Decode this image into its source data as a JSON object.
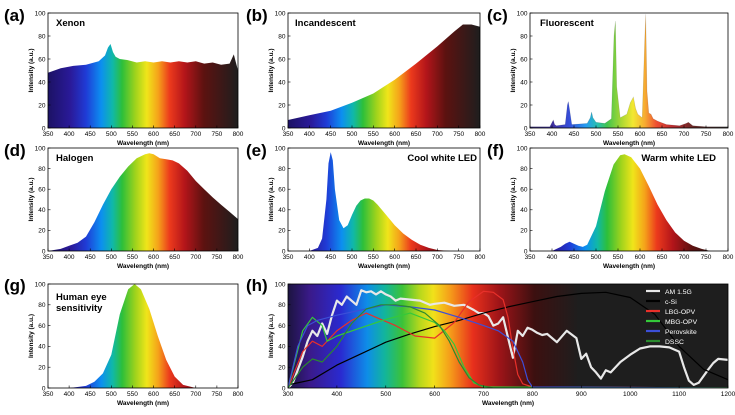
{
  "chart_data": [
    {
      "id": "a",
      "panel_label": "(a)",
      "title": "Xenon",
      "type": "area",
      "xlabel": "Wavelength (nm)",
      "ylabel": "Intensity (a.u.)",
      "xlim": [
        350,
        800
      ],
      "ylim": [
        0,
        100
      ],
      "xticks": [
        350,
        400,
        450,
        500,
        550,
        600,
        650,
        700,
        750,
        800
      ],
      "yticks": [
        0,
        20,
        40,
        60,
        80,
        100
      ],
      "x": [
        350,
        380,
        410,
        440,
        470,
        485,
        492,
        498,
        504,
        510,
        520,
        540,
        560,
        580,
        600,
        620,
        640,
        660,
        680,
        700,
        720,
        740,
        760,
        780,
        790,
        795,
        800
      ],
      "y": [
        48,
        52,
        54,
        55,
        58,
        63,
        70,
        73,
        66,
        62,
        60,
        59,
        57,
        58,
        57,
        58,
        57,
        58,
        57,
        58,
        56,
        57,
        55,
        56,
        64,
        57,
        50
      ]
    },
    {
      "id": "b",
      "panel_label": "(b)",
      "title": "Incandescent",
      "type": "area",
      "xlabel": "Wavelength (nm)",
      "ylabel": "Intensity (a.u.)",
      "xlim": [
        350,
        800
      ],
      "ylim": [
        0,
        100
      ],
      "xticks": [
        350,
        400,
        450,
        500,
        550,
        600,
        650,
        700,
        750,
        800
      ],
      "yticks": [
        0,
        20,
        40,
        60,
        80,
        100
      ],
      "x": [
        350,
        400,
        450,
        500,
        550,
        600,
        650,
        700,
        740,
        760,
        780,
        800
      ],
      "y": [
        7,
        11,
        15,
        22,
        30,
        42,
        56,
        71,
        84,
        90,
        90,
        88
      ]
    },
    {
      "id": "c",
      "panel_label": "(c)",
      "title": "Fluorescent",
      "type": "line",
      "xlabel": "Wavelength (nm)",
      "ylabel": "Intensity (a.u.)",
      "xlim": [
        350,
        800
      ],
      "ylim": [
        0,
        100
      ],
      "xticks": [
        350,
        400,
        450,
        500,
        550,
        600,
        650,
        700,
        750,
        800
      ],
      "yticks": [
        0,
        20,
        40,
        60,
        80,
        100
      ],
      "x": [
        350,
        395,
        403,
        406,
        410,
        430,
        435,
        437,
        440,
        445,
        480,
        487,
        490,
        493,
        500,
        520,
        535,
        541,
        544,
        547,
        555,
        570,
        578,
        585,
        590,
        595,
        605,
        611,
        613,
        616,
        620,
        625,
        630,
        640,
        660,
        690,
        705,
        710,
        720,
        750,
        800
      ],
      "y": [
        1,
        1,
        7,
        3,
        2,
        3,
        20,
        23,
        16,
        3,
        4,
        9,
        14,
        9,
        5,
        4,
        8,
        80,
        93,
        36,
        9,
        12,
        22,
        27,
        17,
        12,
        9,
        78,
        99,
        32,
        13,
        12,
        8,
        6,
        3,
        2,
        4,
        5,
        2,
        1,
        1
      ]
    },
    {
      "id": "d",
      "panel_label": "(d)",
      "title": "Halogen",
      "type": "area",
      "xlabel": "Wavelength (nm)",
      "ylabel": "Intensity (a.u.)",
      "xlim": [
        350,
        800
      ],
      "ylim": [
        0,
        100
      ],
      "xticks": [
        350,
        400,
        450,
        500,
        550,
        600,
        650,
        700,
        750,
        800
      ],
      "yticks": [
        0,
        20,
        40,
        60,
        80,
        100
      ],
      "x": [
        350,
        380,
        400,
        420,
        440,
        460,
        480,
        500,
        520,
        540,
        560,
        580,
        590,
        600,
        615,
        630,
        645,
        660,
        680,
        700,
        720,
        740,
        760,
        780,
        800
      ],
      "y": [
        0,
        2,
        5,
        8,
        14,
        28,
        45,
        60,
        72,
        82,
        90,
        94,
        95,
        94,
        90,
        89,
        88,
        85,
        78,
        68,
        60,
        52,
        45,
        38,
        31
      ]
    },
    {
      "id": "e",
      "panel_label": "(e)",
      "title": "Cool white LED",
      "type": "area",
      "xlabel": "Wavelength (nm)",
      "ylabel": "Intensity (a.u.)",
      "xlim": [
        350,
        800
      ],
      "ylim": [
        0,
        100
      ],
      "xticks": [
        350,
        400,
        450,
        500,
        550,
        600,
        650,
        700,
        750,
        800
      ],
      "yticks": [
        0,
        20,
        40,
        60,
        80,
        100
      ],
      "x": [
        350,
        400,
        420,
        430,
        440,
        445,
        450,
        455,
        460,
        470,
        480,
        490,
        500,
        510,
        520,
        530,
        540,
        550,
        560,
        580,
        600,
        620,
        640,
        660,
        680,
        700,
        730,
        760,
        800
      ],
      "y": [
        0,
        0,
        3,
        12,
        50,
        85,
        96,
        88,
        60,
        30,
        22,
        25,
        35,
        44,
        49,
        51,
        51,
        49,
        45,
        35,
        25,
        17,
        11,
        6,
        3,
        1,
        0,
        0,
        0
      ]
    },
    {
      "id": "f",
      "panel_label": "(f)",
      "title": "Warm white LED",
      "type": "area",
      "xlabel": "Wavelength (nm)",
      "ylabel": "Intensity (a.u.)",
      "xlim": [
        350,
        800
      ],
      "ylim": [
        0,
        100
      ],
      "xticks": [
        350,
        400,
        450,
        500,
        550,
        600,
        650,
        700,
        750,
        800
      ],
      "yticks": [
        0,
        20,
        40,
        60,
        80,
        100
      ],
      "x": [
        350,
        400,
        420,
        430,
        440,
        450,
        460,
        470,
        480,
        500,
        520,
        540,
        555,
        565,
        580,
        600,
        620,
        640,
        660,
        680,
        700,
        720,
        740,
        760,
        800
      ],
      "y": [
        0,
        0,
        4,
        7,
        9,
        7,
        5,
        4,
        6,
        24,
        58,
        84,
        93,
        94,
        91,
        80,
        63,
        45,
        30,
        18,
        10,
        5,
        2,
        0,
        0
      ]
    },
    {
      "id": "g",
      "panel_label": "(g)",
      "title": "Human eye sensitivity",
      "title_lines": [
        "Human eye",
        "sensitivity"
      ],
      "type": "area",
      "xlabel": "Wavelength (nm)",
      "ylabel": "Intensity (a.u.)",
      "xlim": [
        350,
        800
      ],
      "ylim": [
        0,
        100
      ],
      "xticks": [
        350,
        400,
        450,
        500,
        550,
        600,
        650,
        700,
        750,
        800
      ],
      "yticks": [
        0,
        20,
        40,
        60,
        80,
        100
      ],
      "x": [
        350,
        400,
        420,
        440,
        460,
        480,
        500,
        520,
        540,
        555,
        570,
        590,
        610,
        630,
        650,
        670,
        700,
        750,
        800
      ],
      "y": [
        0,
        0,
        1,
        2,
        6,
        14,
        32,
        71,
        95,
        100,
        95,
        76,
        50,
        27,
        11,
        3,
        0,
        0,
        0
      ]
    },
    {
      "id": "h",
      "panel_label": "(h)",
      "title": "",
      "type": "line",
      "xlabel": "Wavelength (nm)",
      "ylabel": "Intensity (a.u.)",
      "xlim": [
        300,
        1200
      ],
      "ylim": [
        0,
        100
      ],
      "xticks": [
        300,
        400,
        500,
        600,
        700,
        800,
        900,
        1000,
        1100,
        1200
      ],
      "yticks": [
        0,
        20,
        40,
        60,
        80,
        100
      ],
      "legend_position": "top-right",
      "series": [
        {
          "name": "AM 1.5G",
          "color": "#e8e8e8",
          "x": [
            300,
            310,
            330,
            340,
            350,
            360,
            370,
            380,
            390,
            400,
            410,
            420,
            440,
            450,
            460,
            470,
            480,
            490,
            500,
            510,
            520,
            530,
            550,
            570,
            590,
            600,
            620,
            640,
            660,
            680,
            690,
            700,
            710,
            720,
            730,
            740,
            760,
            770,
            780,
            790,
            800,
            810,
            820,
            830,
            850,
            870,
            890,
            900,
            910,
            920,
            930,
            940,
            950,
            960,
            980,
            1000,
            1020,
            1040,
            1060,
            1080,
            1100,
            1110,
            1120,
            1130,
            1140,
            1160,
            1170,
            1180,
            1200
          ],
          "y": [
            0,
            5,
            30,
            45,
            55,
            50,
            62,
            52,
            70,
            84,
            80,
            88,
            80,
            94,
            92,
            93,
            90,
            93,
            90,
            88,
            84,
            86,
            85,
            84,
            80,
            81,
            82,
            79,
            80,
            75,
            72,
            72,
            69,
            60,
            62,
            68,
            29,
            55,
            50,
            58,
            56,
            53,
            51,
            52,
            44,
            55,
            48,
            28,
            33,
            20,
            15,
            9,
            17,
            15,
            25,
            32,
            38,
            40,
            40,
            39,
            35,
            20,
            7,
            3,
            5,
            18,
            24,
            28,
            27
          ]
        },
        {
          "name": "c-Si",
          "color": "#000000",
          "x": [
            300,
            350,
            400,
            450,
            500,
            550,
            600,
            650,
            700,
            750,
            800,
            850,
            900,
            950,
            1000,
            1050,
            1100,
            1150,
            1200
          ],
          "y": [
            3,
            8,
            22,
            33,
            44,
            52,
            59,
            65,
            72,
            78,
            83,
            88,
            91,
            92,
            87,
            71,
            40,
            18,
            8
          ]
        },
        {
          "name": "LBG-OPV",
          "color": "#e8302a",
          "x": [
            300,
            330,
            350,
            370,
            400,
            430,
            460,
            490,
            520,
            560,
            600,
            640,
            670,
            700,
            720,
            740,
            750,
            760,
            770,
            780,
            800,
            1200
          ],
          "y": [
            0,
            35,
            45,
            40,
            55,
            65,
            72,
            66,
            60,
            50,
            48,
            63,
            83,
            93,
            92,
            85,
            68,
            38,
            13,
            4,
            1,
            0
          ]
        },
        {
          "name": "MBG-OPV",
          "color": "#34c93a",
          "x": [
            300,
            330,
            350,
            370,
            380,
            400,
            450,
            500,
            550,
            600,
            620,
            640,
            660,
            680,
            700,
            1200
          ],
          "y": [
            0,
            55,
            68,
            60,
            45,
            50,
            58,
            66,
            72,
            63,
            55,
            42,
            20,
            5,
            1,
            0
          ]
        },
        {
          "name": "Perovskite",
          "color": "#3c4fd8",
          "x": [
            300,
            320,
            340,
            360,
            400,
            450,
            500,
            550,
            600,
            650,
            700,
            730,
            760,
            780,
            790,
            800,
            1200
          ],
          "y": [
            0,
            40,
            60,
            65,
            70,
            75,
            80,
            78,
            75,
            68,
            60,
            55,
            45,
            25,
            8,
            1,
            0
          ]
        },
        {
          "name": "DSSC",
          "color": "#2a8a2e",
          "x": [
            300,
            330,
            350,
            370,
            400,
            430,
            460,
            490,
            520,
            550,
            580,
            610,
            630,
            650,
            670,
            690,
            720,
            800,
            1200
          ],
          "y": [
            0,
            20,
            28,
            25,
            40,
            62,
            76,
            80,
            80,
            78,
            72,
            60,
            45,
            25,
            10,
            3,
            0,
            0,
            0
          ]
        }
      ]
    }
  ]
}
